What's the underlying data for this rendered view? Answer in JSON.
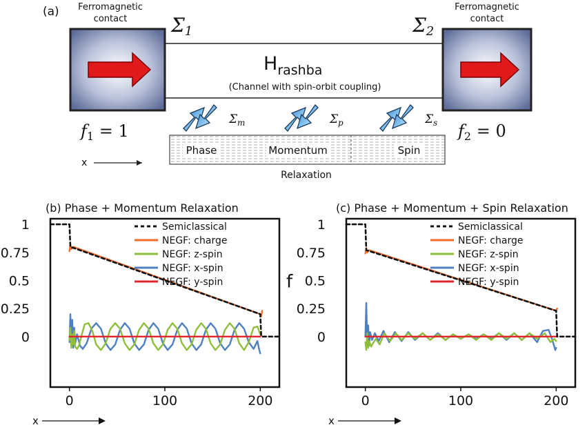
{
  "panel_a": {
    "label": "(a)",
    "left_contact": "Ferromagnetic\ncontact",
    "right_contact": "Ferromagnetic\ncontact",
    "sigma1": "Σ",
    "sigma1_sub": "1",
    "sigma2": "Σ",
    "sigma2_sub": "2",
    "hamiltonian": "H",
    "hamiltonian_sub": "rashba",
    "channel_caption": "(Channel with spin-orbit coupling)",
    "sigma_m": "Σ",
    "sigma_m_sub": "m",
    "sigma_p": "Σ",
    "sigma_p_sub": "p",
    "sigma_s": "Σ",
    "sigma_s_sub": "s",
    "f1_var": "f",
    "f1_sub": "1",
    "f1_rest": " = 1",
    "f2_var": "f",
    "f2_sub": "2",
    "f2_rest": " = 0",
    "relax_phase": "Phase",
    "relax_momentum": "Momentum",
    "relax_spin": "Spin",
    "relax_title": "Relaxation",
    "x_label": "x",
    "colors": {
      "arrow_red": "#e01a1a",
      "contact_blue": "#6c7aa6",
      "process_arrow": "#4aa3e0"
    }
  },
  "chart_data": [
    {
      "type": "line",
      "title": "(b) Phase + Momentum Relaxation",
      "xlabel": "x",
      "ylabel": "f",
      "xlim": [
        -20,
        220
      ],
      "ylim": [
        -0.45,
        1.05
      ],
      "xticks": [
        0,
        100,
        200
      ],
      "yticks": [
        0,
        0.25,
        0.5,
        0.75,
        1
      ],
      "ytick_labels": [
        "0",
        "0.25",
        "0.5",
        "0.75",
        "1"
      ],
      "legend_position": "top-right",
      "series": [
        {
          "name": "Semiclassical",
          "color": "#111111",
          "dashed": true,
          "x": [
            -20,
            0,
            1,
            200,
            201,
            220
          ],
          "y": [
            1,
            1,
            0.8,
            0.2,
            0,
            0
          ]
        },
        {
          "name": "NEGF: charge",
          "color": "#f26b2a",
          "x": [
            0,
            1,
            2,
            4,
            200,
            201,
            202
          ],
          "y": [
            0.76,
            0.82,
            0.78,
            0.8,
            0.2,
            0.18,
            0.23
          ]
        },
        {
          "name": "NEGF: z-spin",
          "color": "#8fbf3a",
          "x": [
            0,
            1,
            2,
            3,
            4,
            5,
            6,
            8,
            10,
            13,
            16,
            20,
            24,
            28,
            33,
            38,
            43,
            48,
            53,
            58,
            63,
            68,
            73,
            78,
            83,
            88,
            93,
            98,
            103,
            108,
            113,
            118,
            123,
            128,
            133,
            138,
            143,
            148,
            153,
            158,
            163,
            168,
            173,
            178,
            183,
            188,
            193,
            197,
            200
          ],
          "y": [
            -0.03,
            0.08,
            -0.1,
            0.02,
            -0.07,
            0.05,
            -0.09,
            -0.11,
            -0.08,
            0.02,
            0.11,
            0.12,
            0.05,
            -0.07,
            -0.12,
            -0.06,
            0.07,
            0.12,
            0.07,
            -0.06,
            -0.12,
            -0.07,
            0.06,
            0.12,
            0.07,
            -0.06,
            -0.12,
            -0.07,
            0.06,
            0.12,
            0.07,
            -0.06,
            -0.12,
            -0.07,
            0.06,
            0.12,
            0.07,
            -0.06,
            -0.12,
            -0.07,
            0.06,
            0.12,
            0.07,
            -0.06,
            -0.12,
            -0.05,
            0.08,
            0.09,
            0.02
          ]
        },
        {
          "name": "NEGF: x-spin",
          "color": "#4f7fc0",
          "x": [
            0,
            1,
            2,
            3,
            4,
            5,
            6,
            8,
            11,
            14,
            18,
            23,
            28,
            33,
            38,
            43,
            48,
            53,
            58,
            63,
            68,
            73,
            78,
            83,
            88,
            93,
            98,
            103,
            108,
            113,
            118,
            123,
            128,
            133,
            138,
            143,
            148,
            153,
            158,
            163,
            168,
            173,
            178,
            183,
            188,
            193,
            197,
            199,
            200
          ],
          "y": [
            -0.05,
            0.2,
            -0.08,
            0.15,
            -0.1,
            0.08,
            -0.06,
            0.02,
            -0.08,
            -0.11,
            -0.06,
            0.07,
            0.12,
            0.07,
            -0.06,
            -0.12,
            -0.07,
            0.06,
            0.12,
            0.07,
            -0.06,
            -0.12,
            -0.07,
            0.06,
            0.12,
            0.07,
            -0.06,
            -0.12,
            -0.07,
            0.06,
            0.12,
            0.07,
            -0.06,
            -0.12,
            -0.07,
            0.06,
            0.12,
            0.07,
            -0.06,
            -0.12,
            -0.07,
            0.06,
            0.12,
            0.07,
            -0.05,
            -0.11,
            -0.04,
            -0.12,
            -0.15
          ]
        },
        {
          "name": "NEGF: y-spin",
          "color": "#e0262a",
          "x": [
            0,
            200
          ],
          "y": [
            0,
            0
          ]
        }
      ]
    },
    {
      "type": "line",
      "title": "(c) Phase + Momentum + Spin Relaxation",
      "xlabel": "x",
      "ylabel": "f",
      "xlim": [
        -20,
        220
      ],
      "ylim": [
        -0.45,
        1.05
      ],
      "xticks": [
        0,
        100,
        200
      ],
      "yticks": [
        0,
        0.25,
        0.5,
        0.75,
        1
      ],
      "ytick_labels": [
        "0",
        "0.25",
        "0.5",
        "0.75",
        "1"
      ],
      "legend_position": "top-right",
      "series": [
        {
          "name": "Semiclassical",
          "color": "#111111",
          "dashed": true,
          "x": [
            -20,
            0,
            1,
            200,
            201,
            220
          ],
          "y": [
            1,
            1,
            0.77,
            0.23,
            0,
            0
          ]
        },
        {
          "name": "NEGF: charge",
          "color": "#f26b2a",
          "x": [
            0,
            1,
            2,
            4,
            200,
            201
          ],
          "y": [
            0.74,
            0.79,
            0.75,
            0.77,
            0.23,
            0.25
          ]
        },
        {
          "name": "NEGF: z-spin",
          "color": "#8fbf3a",
          "x": [
            0,
            1,
            2,
            3,
            4,
            6,
            8,
            11,
            15,
            20,
            26,
            32,
            38,
            45,
            52,
            60,
            68,
            76,
            84,
            92,
            100,
            108,
            116,
            124,
            132,
            140,
            148,
            156,
            164,
            172,
            180,
            188,
            194,
            198,
            200
          ],
          "y": [
            -0.05,
            -0.12,
            0.03,
            -0.1,
            -0.04,
            -0.09,
            -0.06,
            -0.02,
            -0.07,
            0.03,
            -0.04,
            0.03,
            -0.03,
            0.03,
            -0.02,
            0.03,
            -0.03,
            0.02,
            -0.03,
            0.02,
            -0.02,
            0.02,
            -0.03,
            0.02,
            -0.03,
            0.03,
            -0.02,
            0.03,
            -0.03,
            0.03,
            -0.02,
            0.03,
            -0.05,
            -0.02,
            -0.04
          ]
        },
        {
          "name": "NEGF: x-spin",
          "color": "#4f7fc0",
          "x": [
            0,
            1,
            2,
            3,
            4,
            5,
            7,
            10,
            14,
            19,
            25,
            31,
            38,
            45,
            52,
            60,
            68,
            76,
            84,
            92,
            100,
            108,
            116,
            124,
            132,
            140,
            148,
            156,
            164,
            172,
            180,
            186,
            192,
            196,
            199,
            200
          ],
          "y": [
            0.0,
            0.3,
            -0.05,
            0.1,
            -0.08,
            0.04,
            -0.03,
            0.03,
            -0.04,
            0.05,
            -0.05,
            0.04,
            -0.04,
            0.04,
            -0.03,
            0.03,
            -0.03,
            0.03,
            -0.03,
            0.02,
            -0.02,
            0.02,
            -0.02,
            0.02,
            -0.02,
            0.03,
            -0.03,
            0.03,
            -0.03,
            0.03,
            -0.05,
            0.05,
            0.06,
            -0.03,
            -0.12,
            -0.1
          ]
        },
        {
          "name": "NEGF: y-spin",
          "color": "#e0262a",
          "x": [
            0,
            200
          ],
          "y": [
            0,
            0
          ]
        }
      ]
    }
  ]
}
